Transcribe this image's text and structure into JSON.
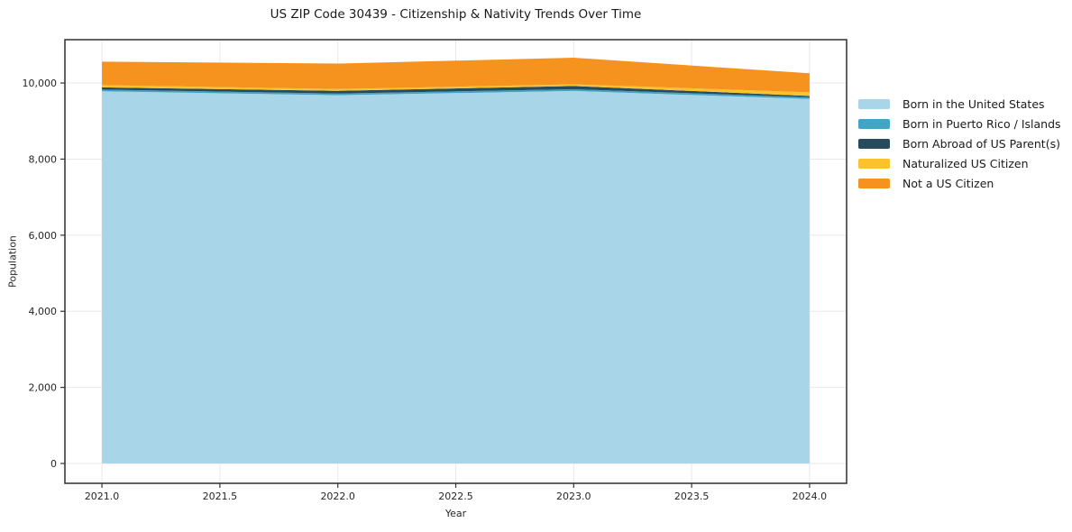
{
  "chart_data": {
    "type": "area",
    "stacked": true,
    "title": "US ZIP Code 30439 - Citizenship & Nativity Trends Over Time",
    "xlabel": "Year",
    "ylabel": "Population",
    "x": [
      2021,
      2022,
      2023,
      2024
    ],
    "series": [
      {
        "name": "Born in the United States",
        "color": "#A9D5E8",
        "values": [
          9780,
          9680,
          9790,
          9580
        ]
      },
      {
        "name": "Born in Puerto Rico / Islands",
        "color": "#42A5C4",
        "values": [
          45,
          45,
          45,
          45
        ]
      },
      {
        "name": "Born Abroad of US Parent(s)",
        "color": "#264B5C",
        "values": [
          60,
          70,
          85,
          35
        ]
      },
      {
        "name": "Naturalized US Citizen",
        "color": "#FBC22D",
        "values": [
          60,
          45,
          45,
          95
        ]
      },
      {
        "name": "Not a US Citizen",
        "color": "#F6921E",
        "values": [
          615,
          670,
          700,
          500
        ]
      }
    ],
    "totals": [
      10560,
      10510,
      10665,
      10255
    ],
    "x_ticks": [
      2021.0,
      2021.5,
      2022.0,
      2022.5,
      2023.0,
      2023.5,
      2024.0
    ],
    "x_tick_labels": [
      "2021.0",
      "2021.5",
      "2022.0",
      "2022.5",
      "2023.0",
      "2023.5",
      "2024.0"
    ],
    "y_ticks": [
      0,
      2000,
      4000,
      6000,
      8000,
      10000
    ],
    "y_tick_labels": [
      "0",
      "2,000",
      "4,000",
      "6,000",
      "8,000",
      "10,000"
    ],
    "xlim": [
      2020.843,
      2024.157
    ],
    "ylim": [
      -521,
      11139
    ],
    "grid": true,
    "legend_position": "right",
    "colors": {
      "grid": "#e8e8e8",
      "spine": "#2e2e2e",
      "tick": "#333333",
      "tick_label": "#262626",
      "background": "#ffffff"
    }
  }
}
